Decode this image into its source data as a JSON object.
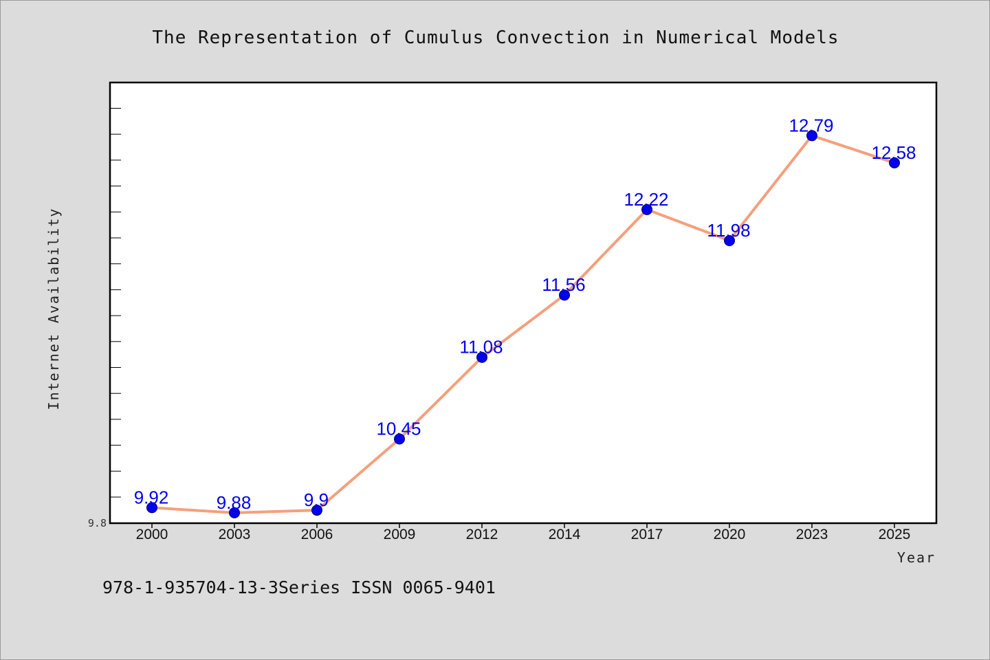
{
  "chart_data": {
    "type": "line",
    "title": "The Representation of Cumulus Convection in Numerical Models",
    "xlabel": "Year",
    "ylabel": "Internet Availability",
    "categories": [
      "2000",
      "2003",
      "2006",
      "2009",
      "2012",
      "2014",
      "2017",
      "2020",
      "2023",
      "2025"
    ],
    "series": [
      {
        "values": [
          9.92,
          9.88,
          9.9,
          10.45,
          11.08,
          11.56,
          12.22,
          11.98,
          12.79,
          12.58
        ],
        "data_labels": [
          "9.92",
          "9.88",
          "9.9",
          "10.45",
          "11.08",
          "11.56",
          "12.22",
          "11.98",
          "12.79",
          "12.58"
        ]
      }
    ],
    "yticks": [
      {
        "value": 9.8,
        "label": "9.8"
      }
    ],
    "ylim": [
      9.8,
      13.2
    ],
    "grid": false,
    "colors": {
      "line": "#f4a07c",
      "marker": "#0000ee",
      "marker_edge": "#000066",
      "data_label": "#0000ee",
      "plot_background": "#ffffff",
      "page_background": "#dcdcdc"
    }
  },
  "footer": {
    "text": "978-1-935704-13-3Series ISSN 0065-9401"
  }
}
